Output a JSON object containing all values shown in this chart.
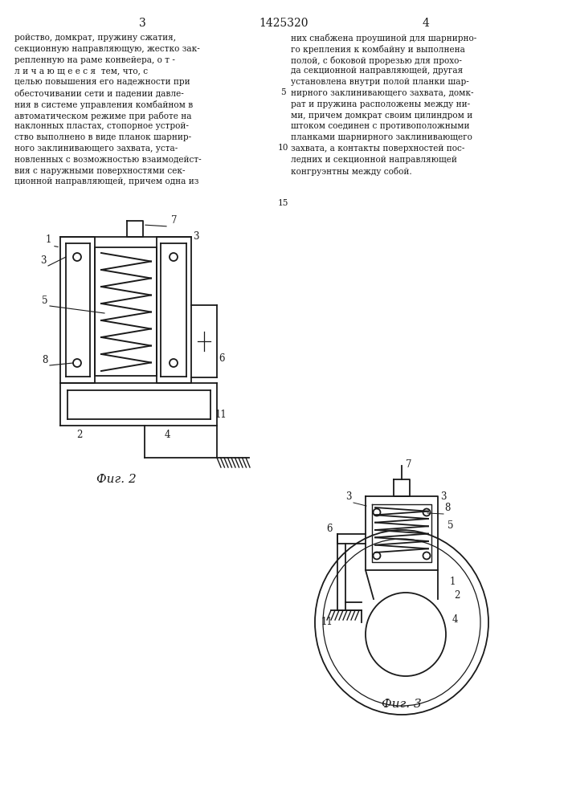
{
  "page_number_left": "3",
  "page_number_center": "1425320",
  "page_number_right": "4",
  "text_left": "ройство, домкрат, пружину сжатия,\nсекционную направляющую, жестко зак-\nрепленную на раме конвейера, о т -\nл и ч а ю щ е е с я  тем, что, с\nцелью повышения его надежности при\nобесточивании сети и падении давле-\nния в системе управления комбайном в\nавтоматическом режиме при работе на\nнаклонных пластах, стопорное устрой-\nство выполнено в виде планок шарнир-\nного заклинивающего захвата, уста-\nновленных с возможностью взаимодейст-\nвия с наружными поверхностями сек-\nционной направляющей, причем одна из",
  "text_right": "них снабжена проушиной для шарнирно-\nго крепления к комбайну и выполнена\nполой, с боковой прорезью для прохо-\nда секционной направляющей, другая\nустановлена внутри полой планки шар-\nнирного заклинивающего захвата, домк-\nрат и пружина расположены между ни-\nми, причем домкрат своим цилиндром и\nштоком соединен с противоположными\nпланками шарнирного заклинивающего\nзахвата, а контакты поверхностей пос-\nледних и секционной направляющей\nконгруэнтны между собой.",
  "fig2_caption": "Фиг. 2",
  "fig3_caption": "Фиг. 3",
  "bg_color": "#ffffff",
  "line_color": "#1a1a1a"
}
